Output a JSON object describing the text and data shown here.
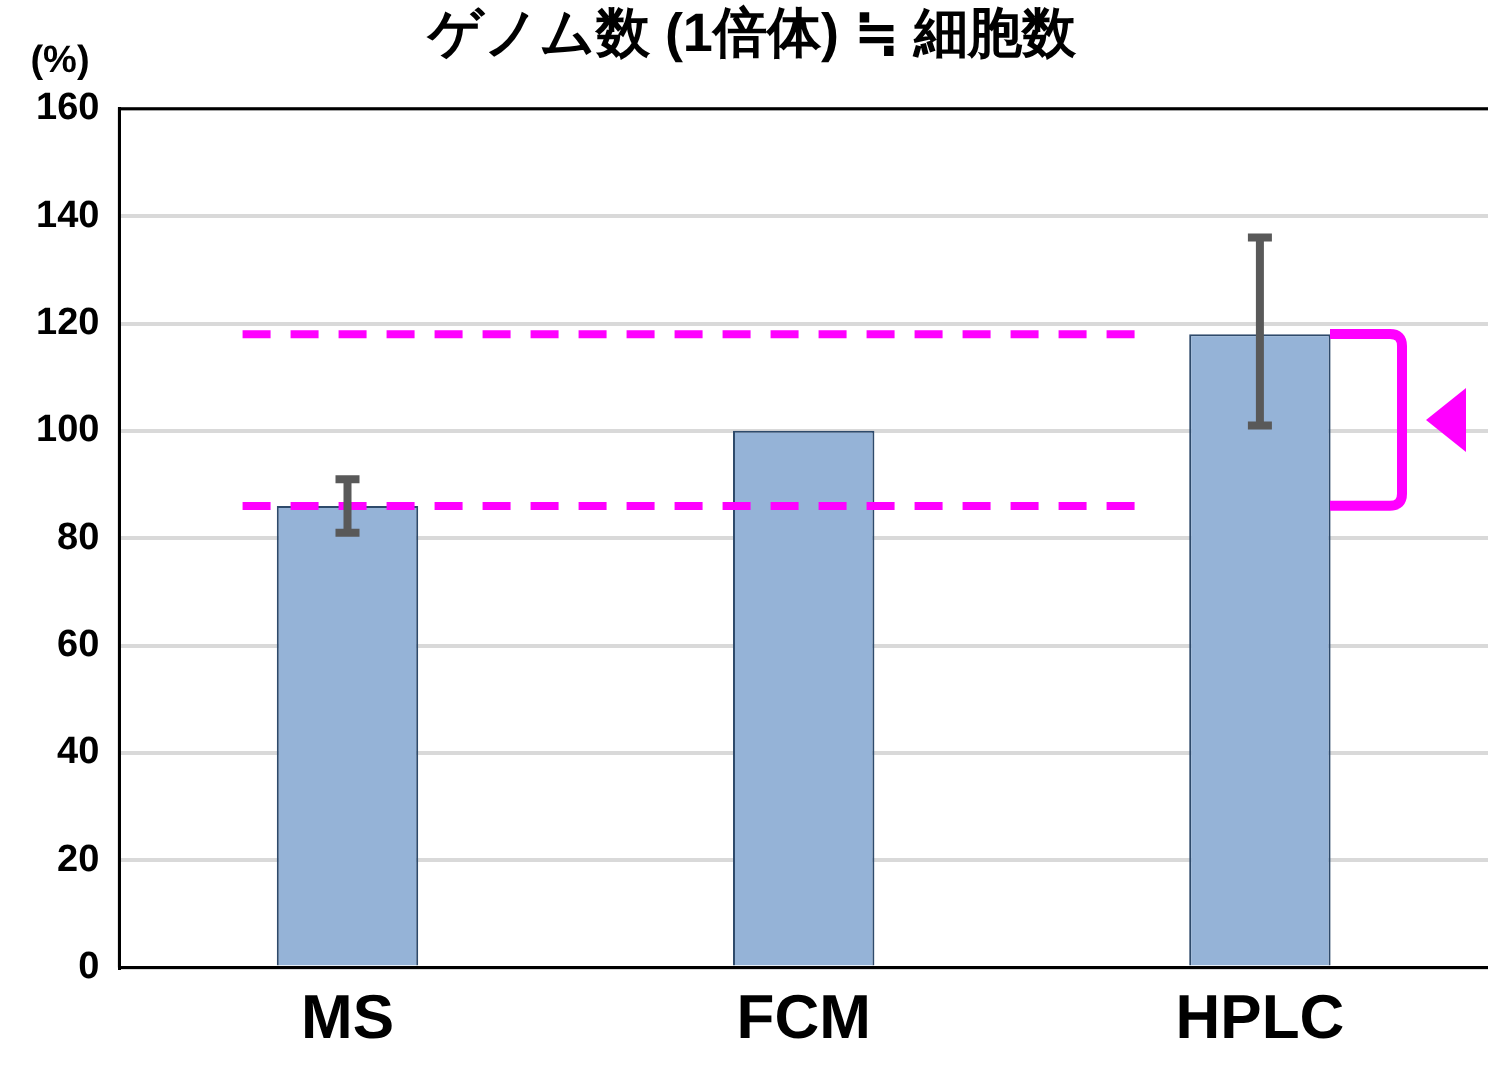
{
  "chart_data": {
    "type": "bar",
    "title": "ゲノム数 (1倍体) ≒ 細胞数",
    "ylabel": "(%)",
    "categories": [
      "MS",
      "FCM",
      "HPLC"
    ],
    "values": [
      86,
      100,
      118
    ],
    "errors": [
      [
        81,
        91
      ],
      null,
      [
        101,
        136
      ]
    ],
    "color": "#95b3d7",
    "ylim": [
      0,
      160
    ],
    "yticks": [
      0,
      20,
      40,
      60,
      80,
      100,
      120,
      140,
      160
    ],
    "grid": "y",
    "legend": false,
    "ref_lines": [
      {
        "axis": "y",
        "value": 118,
        "color": "#ff00ff",
        "line_style": "dashed"
      },
      {
        "axis": "y",
        "value": 86,
        "color": "#ff00ff",
        "line_style": "dashed"
      }
    ]
  }
}
